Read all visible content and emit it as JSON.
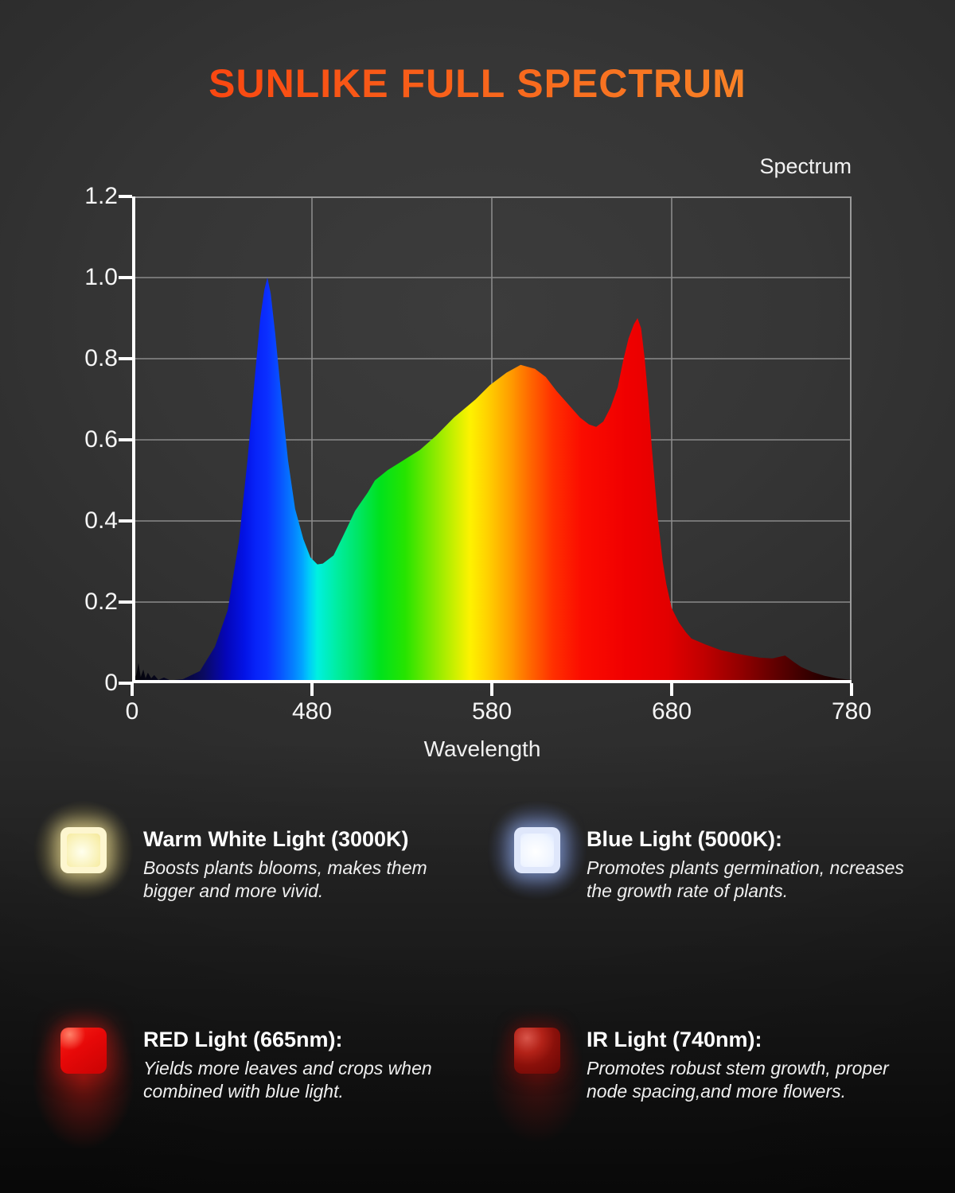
{
  "page": {
    "title": "SUNLIKE FULL SPECTRUM",
    "title_gradient": [
      "#f93b0c",
      "#f88e2b"
    ],
    "background_color": "#343434"
  },
  "chart_data": {
    "type": "area",
    "legend": "Spectrum",
    "xlabel": "Wavelength",
    "x_ticks": [
      0,
      480,
      580,
      680,
      780
    ],
    "x_tick_labels": [
      "0",
      "480",
      "580",
      "680",
      "780"
    ],
    "x_axis_note": "axis is compressed below 480nm; ticks are equally spaced",
    "y_ticks": [
      1.2,
      1.0,
      0.8,
      0.6,
      0.4,
      0.2,
      0
    ],
    "y_tick_labels": [
      "1.2",
      "1.0",
      "0.8",
      "0.6",
      "0.4",
      "0.2",
      "0"
    ],
    "ylim": [
      0,
      1.2
    ],
    "grid": true,
    "grid_color": "#8a8a8a",
    "axis_color": "#ffffff",
    "peaks": {
      "blue_peak": {
        "x": 361,
        "y": 1.0
      },
      "valley": {
        "x": 483,
        "y": 0.29
      },
      "broad_peak": {
        "x": 596,
        "y": 0.785
      },
      "dip": {
        "x": 638,
        "y": 0.63
      },
      "red_peak": {
        "x": 660,
        "y": 0.9
      },
      "ir_bump": {
        "x": 742,
        "y": 0.068
      }
    },
    "series": [
      {
        "name": "Spectrum",
        "points": [
          [
            0,
            0.004
          ],
          [
            11,
            0.02
          ],
          [
            17,
            0.05
          ],
          [
            23,
            0.015
          ],
          [
            30,
            0.034
          ],
          [
            36,
            0.012
          ],
          [
            42,
            0.026
          ],
          [
            51,
            0.012
          ],
          [
            59,
            0.02
          ],
          [
            70,
            0.008
          ],
          [
            85,
            0.014
          ],
          [
            102,
            0.007
          ],
          [
            136,
            0.01
          ],
          [
            181,
            0.03
          ],
          [
            221,
            0.09
          ],
          [
            255,
            0.18
          ],
          [
            285,
            0.35
          ],
          [
            308,
            0.55
          ],
          [
            327,
            0.75
          ],
          [
            342,
            0.9
          ],
          [
            353,
            0.97
          ],
          [
            361,
            1.0
          ],
          [
            370,
            0.96
          ],
          [
            382,
            0.86
          ],
          [
            399,
            0.7
          ],
          [
            416,
            0.55
          ],
          [
            435,
            0.43
          ],
          [
            457,
            0.355
          ],
          [
            476,
            0.31
          ],
          [
            483,
            0.293
          ],
          [
            486,
            0.295
          ],
          [
            492,
            0.315
          ],
          [
            497,
            0.36
          ],
          [
            504,
            0.425
          ],
          [
            511,
            0.47
          ],
          [
            515,
            0.5
          ],
          [
            522,
            0.525
          ],
          [
            531,
            0.55
          ],
          [
            540,
            0.575
          ],
          [
            549,
            0.61
          ],
          [
            559,
            0.655
          ],
          [
            571,
            0.7
          ],
          [
            579,
            0.735
          ],
          [
            588,
            0.765
          ],
          [
            596,
            0.785
          ],
          [
            604,
            0.775
          ],
          [
            610,
            0.755
          ],
          [
            616,
            0.72
          ],
          [
            623,
            0.685
          ],
          [
            629,
            0.655
          ],
          [
            634,
            0.638
          ],
          [
            638,
            0.632
          ],
          [
            642,
            0.645
          ],
          [
            646,
            0.68
          ],
          [
            650,
            0.73
          ],
          [
            653,
            0.795
          ],
          [
            656,
            0.85
          ],
          [
            659,
            0.885
          ],
          [
            661,
            0.9
          ],
          [
            663,
            0.875
          ],
          [
            665,
            0.8
          ],
          [
            667,
            0.7
          ],
          [
            669,
            0.58
          ],
          [
            672,
            0.42
          ],
          [
            675,
            0.3
          ],
          [
            677,
            0.245
          ],
          [
            680,
            0.185
          ],
          [
            684,
            0.15
          ],
          [
            688,
            0.125
          ],
          [
            691,
            0.11
          ],
          [
            699,
            0.095
          ],
          [
            707,
            0.082
          ],
          [
            716,
            0.073
          ],
          [
            722,
            0.068
          ],
          [
            729,
            0.063
          ],
          [
            736,
            0.061
          ],
          [
            741,
            0.066
          ],
          [
            743,
            0.068
          ],
          [
            745,
            0.062
          ],
          [
            748,
            0.052
          ],
          [
            752,
            0.04
          ],
          [
            758,
            0.028
          ],
          [
            765,
            0.018
          ],
          [
            772,
            0.012
          ],
          [
            780,
            0.008
          ]
        ]
      }
    ],
    "gradient_stops": [
      [
        0,
        "#050508"
      ],
      [
        120,
        "#06062a"
      ],
      [
        190,
        "#0a0a60"
      ],
      [
        250,
        "#0506b8"
      ],
      [
        300,
        "#0313e6"
      ],
      [
        330,
        "#0723f8"
      ],
      [
        361,
        "#0b2fff"
      ],
      [
        395,
        "#0853ff"
      ],
      [
        430,
        "#0580ff"
      ],
      [
        455,
        "#02a6ff"
      ],
      [
        470,
        "#00c8fa"
      ],
      [
        483,
        "#00f0e0"
      ],
      [
        494,
        "#00eda0"
      ],
      [
        505,
        "#00e668"
      ],
      [
        518,
        "#00e21c"
      ],
      [
        532,
        "#27e400"
      ],
      [
        545,
        "#77e900"
      ],
      [
        558,
        "#c4ef00"
      ],
      [
        568,
        "#fef200"
      ],
      [
        578,
        "#ffd000"
      ],
      [
        590,
        "#ff9e00"
      ],
      [
        602,
        "#ff6400"
      ],
      [
        614,
        "#ff3000"
      ],
      [
        630,
        "#fb0c00"
      ],
      [
        655,
        "#f00000"
      ],
      [
        678,
        "#e20000"
      ],
      [
        698,
        "#c00000"
      ],
      [
        718,
        "#930000"
      ],
      [
        738,
        "#600000"
      ],
      [
        755,
        "#380000"
      ],
      [
        768,
        "#1e0000"
      ],
      [
        780,
        "#0e0000"
      ]
    ]
  },
  "features": [
    {
      "icon": "warm-white-led-icon",
      "title": "Warm White Light (3000K)",
      "description": "Boosts plants blooms, makes them bigger and more vivid.",
      "glow_color": "#ffe37a"
    },
    {
      "icon": "blue-led-icon",
      "title": "Blue Light (5000K):",
      "description": "Promotes plants germination, ncreases the growth rate of plants.",
      "glow_color": "#9db8ff"
    },
    {
      "icon": "red-led-icon",
      "title": "RED Light (665nm):",
      "description": "Yields more leaves and crops when combined with blue light.",
      "glow_color": "#ff1f1f"
    },
    {
      "icon": "ir-led-icon",
      "title": "IR Light (740nm):",
      "description": "Promotes robust stem growth, proper node spacing,and more flowers.",
      "glow_color": "#8a0a0a"
    }
  ]
}
